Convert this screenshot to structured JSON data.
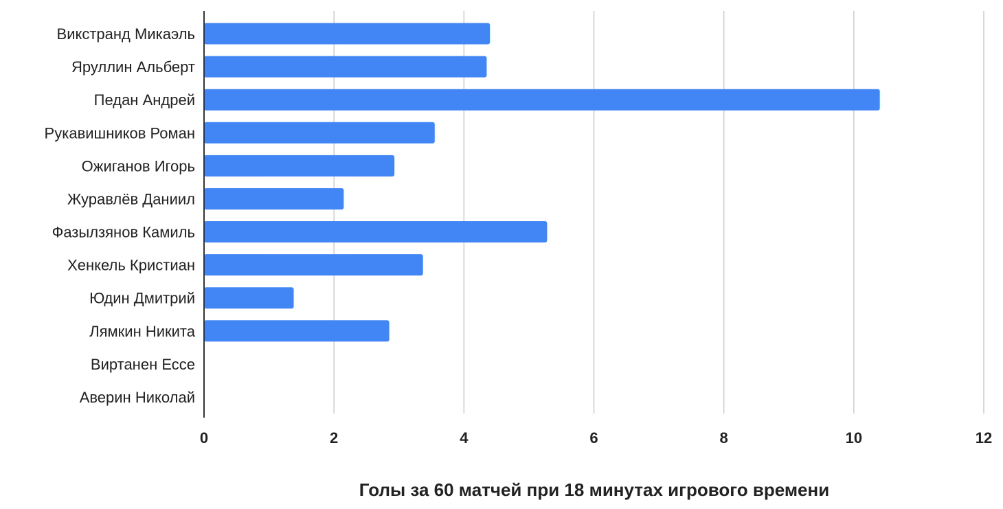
{
  "chart_data": {
    "type": "bar",
    "orientation": "horizontal",
    "categories": [
      "Викстранд Микаэль",
      "Яруллин Альберт",
      "Педан Андрей",
      "Рукавишников Роман",
      "Ожиганов Игорь",
      "Журавлёв Даниил",
      "Фазылзянов Камиль",
      "Хенкель Кристиан",
      "Юдин Дмитрий",
      "Лямкин Никита",
      "Виртанен Ессе",
      "Аверин Николай"
    ],
    "values": [
      4.4,
      4.35,
      10.4,
      3.55,
      2.93,
      2.15,
      5.28,
      3.37,
      1.38,
      2.85,
      0,
      0
    ],
    "title": "",
    "xlabel": "Голы за 60 матчей при 18 минутах игрового времени",
    "ylabel": "",
    "xlim": [
      0,
      12
    ],
    "xticks": [
      "0",
      "2",
      "4",
      "6",
      "8",
      "10",
      "12"
    ],
    "grid": true,
    "bar_color": "#4285f4",
    "gridline_color": "#cccccc",
    "axis_color": "#333333"
  }
}
